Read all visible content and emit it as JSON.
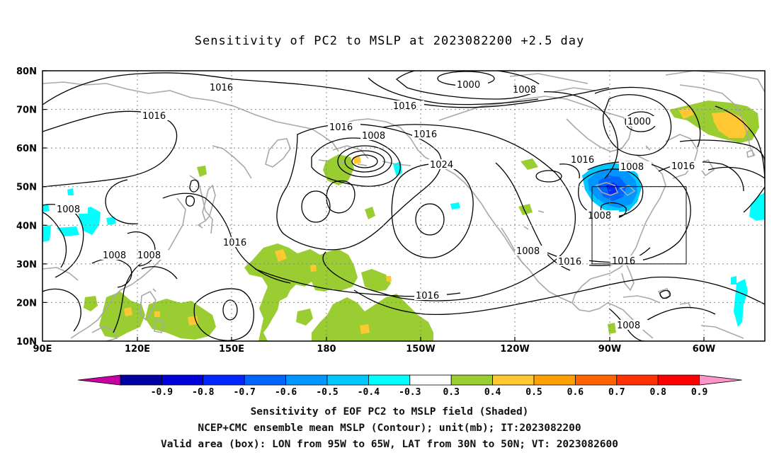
{
  "title": "Sensitivity of PC2 to MSLP at 2023082200 +2.5 day",
  "map": {
    "lat_labels": [
      "80N",
      "70N",
      "60N",
      "50N",
      "40N",
      "30N",
      "20N",
      "10N"
    ],
    "lon_labels": [
      "90E",
      "120E",
      "150E",
      "180",
      "150W",
      "120W",
      "90W",
      "60W"
    ],
    "valid_box": {
      "lon_from": "95W",
      "lon_to": "65W",
      "lat_from": "30N",
      "lat_to": "50N"
    },
    "contour_labels": [
      "1000",
      "1008",
      "1016",
      "1024"
    ],
    "colors": {
      "positive_low": "#9acd32",
      "positive_mid": "#ffc832",
      "negative_low": "#00ffff",
      "negative_mid": "#0096ff",
      "negative_high": "#0046ff",
      "land_outline": "#a9a9a9"
    }
  },
  "colorbar": {
    "labels": [
      "-0.9",
      "-0.8",
      "-0.7",
      "-0.6",
      "-0.5",
      "-0.4",
      "-0.3",
      "0.3",
      "0.4",
      "0.5",
      "0.6",
      "0.7",
      "0.8",
      "0.9"
    ],
    "colors": [
      "#0000a0",
      "#0000d8",
      "#0028ff",
      "#0064ff",
      "#0096ff",
      "#00c8ff",
      "#00ffff",
      "#ffffff",
      "#9acd32",
      "#ffc832",
      "#ffa000",
      "#ff6400",
      "#ff3200",
      "#ff0000"
    ],
    "low_arrow_color": "#c800a0",
    "high_arrow_color": "#ff96c8"
  },
  "captions": {
    "line1": "Sensitivity of EOF PC2 to MSLP field (Shaded)",
    "line2": "NCEP+CMC ensemble mean MSLP (Contour); unit(mb); IT:2023082200",
    "line3": "Valid area (box): LON from 95W to 65W, LAT from 30N to 50N; VT: 2023082600"
  }
}
